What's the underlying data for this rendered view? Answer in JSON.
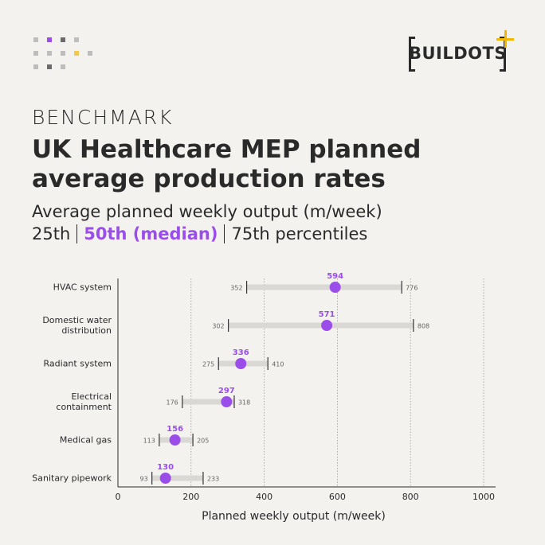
{
  "logo": "BUILDOTS",
  "kicker": "BENCHMARK",
  "chart_data": {
    "type": "dumbbell",
    "title": "UK Healthcare MEP planned average production rates",
    "subtitle": "Average planned weekly output (m/week)",
    "categories": [
      "HVAC system",
      "Domestic water distribution",
      "Radiant system",
      "Electrical containment",
      "Medical gas",
      "Sanitary pipework"
    ],
    "series": [
      {
        "name": "25th",
        "color": "#333333",
        "values": [
          352,
          302,
          275,
          176,
          113,
          93
        ]
      },
      {
        "name": "50th (median)",
        "color": "#9b4dea",
        "values": [
          594,
          571,
          336,
          297,
          156,
          130
        ]
      },
      {
        "name": "75th percentiles",
        "color": "#333333",
        "values": [
          776,
          808,
          410,
          318,
          205,
          233
        ]
      }
    ],
    "range_color": "#d9d8d5",
    "x_label": "Planned weekly output (m/week)",
    "xlim": [
      0,
      1000
    ],
    "xticks": [
      0,
      200,
      400,
      600,
      800,
      1000
    ],
    "grid": true
  }
}
